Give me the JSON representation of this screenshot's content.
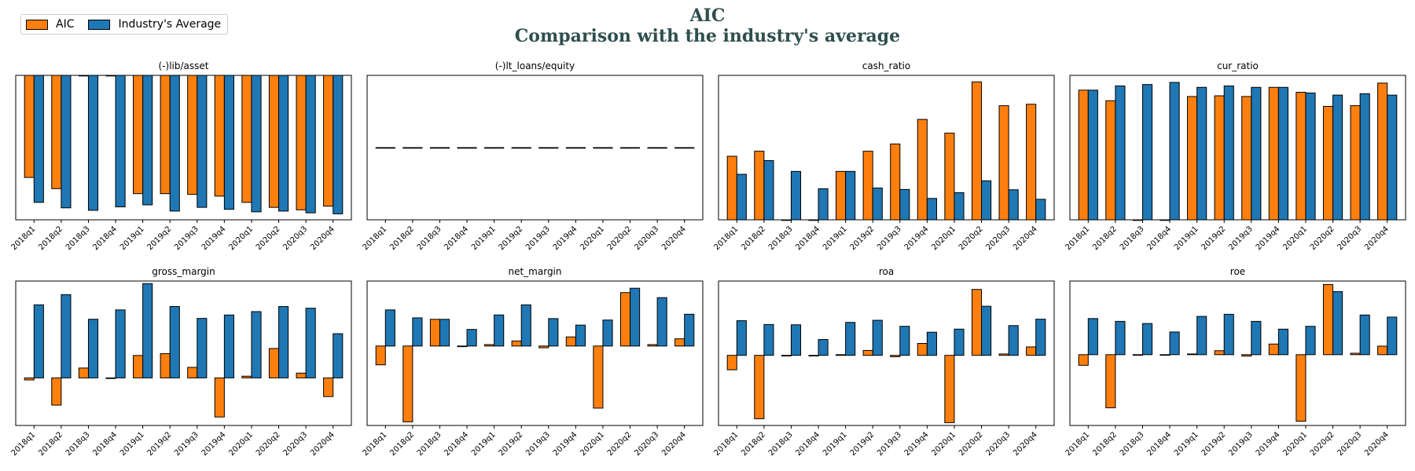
{
  "title": {
    "line1": "AIC",
    "line2": "Comparison with the industry's average"
  },
  "legend": [
    {
      "label": "AIC",
      "color": "#ff7f0e"
    },
    {
      "label": "Industry's Average",
      "color": "#1f77b4"
    }
  ],
  "chart_data": [
    {
      "type": "bar",
      "title": "(-)lib/asset",
      "ylim": [
        -0.58,
        0.0
      ],
      "categories": [
        "2018q1",
        "2018q2",
        "2018q3",
        "2018q4",
        "2019q1",
        "2019q2",
        "2019q3",
        "2019q4",
        "2020q1",
        "2020q2",
        "2020q3",
        "2020q4"
      ],
      "series": [
        {
          "name": "AIC",
          "values": [
            -0.41,
            -0.455,
            0.0,
            0.0,
            -0.475,
            -0.475,
            -0.478,
            -0.485,
            -0.51,
            -0.53,
            -0.54,
            -0.525
          ]
        },
        {
          "name": "Industry's Average",
          "values": [
            -0.51,
            -0.532,
            -0.542,
            -0.528,
            -0.52,
            -0.545,
            -0.53,
            -0.538,
            -0.548,
            -0.545,
            -0.552,
            -0.556
          ]
        }
      ]
    },
    {
      "type": "bar",
      "title": "(-)lt_loans/equity",
      "ylim": [
        -1,
        1
      ],
      "categories": [
        "2018q1",
        "2018q2",
        "2018q3",
        "2018q4",
        "2019q1",
        "2019q2",
        "2019q3",
        "2019q4",
        "2020q1",
        "2020q2",
        "2020q3",
        "2020q4"
      ],
      "series": [
        {
          "name": "AIC",
          "values": [
            0,
            0,
            0,
            0,
            0,
            0,
            0,
            0,
            0,
            0,
            0,
            0
          ]
        },
        {
          "name": "Industry's Average",
          "values": [
            0,
            0,
            0,
            0,
            0,
            0,
            0,
            0,
            0,
            0,
            0,
            0
          ]
        }
      ]
    },
    {
      "type": "bar",
      "title": "cash_ratio",
      "ylim": [
        0,
        1.0
      ],
      "categories": [
        "2018q1",
        "2018q2",
        "2018q3",
        "2018q4",
        "2019q1",
        "2019q2",
        "2019q3",
        "2019q4",
        "2020q1",
        "2020q2",
        "2020q3",
        "2020q4"
      ],
      "series": [
        {
          "name": "AIC",
          "values": [
            0.44,
            0.475,
            0.0,
            0.0,
            0.335,
            0.475,
            0.525,
            0.695,
            0.6,
            0.955,
            0.79,
            0.8
          ]
        },
        {
          "name": "Industry's Average",
          "values": [
            0.315,
            0.41,
            0.335,
            0.215,
            0.335,
            0.22,
            0.21,
            0.148,
            0.188,
            0.27,
            0.208,
            0.142
          ]
        }
      ]
    },
    {
      "type": "bar",
      "title": "cur_ratio",
      "ylim": [
        0,
        2.05
      ],
      "categories": [
        "2018q1",
        "2018q2",
        "2018q3",
        "2018q4",
        "2019q1",
        "2019q2",
        "2019q3",
        "2019q4",
        "2020q1",
        "2020q2",
        "2020q3",
        "2020q4"
      ],
      "series": [
        {
          "name": "AIC",
          "values": [
            1.84,
            1.69,
            0.0,
            0.0,
            1.75,
            1.76,
            1.75,
            1.88,
            1.81,
            1.61,
            1.62,
            1.94
          ]
        },
        {
          "name": "Industry's Average",
          "values": [
            1.84,
            1.9,
            1.92,
            1.95,
            1.88,
            1.9,
            1.88,
            1.88,
            1.8,
            1.77,
            1.79,
            1.77
          ]
        }
      ]
    },
    {
      "type": "bar",
      "title": "gross_margin",
      "ylim": [
        -0.28,
        0.57
      ],
      "categories": [
        "2018q1",
        "2018q2",
        "2018q3",
        "2018q4",
        "2019q1",
        "2019q2",
        "2019q3",
        "2019q4",
        "2020q1",
        "2020q2",
        "2020q3",
        "2020q4"
      ],
      "series": [
        {
          "name": "AIC",
          "values": [
            -0.012,
            -0.16,
            0.058,
            0.0,
            0.132,
            0.143,
            0.062,
            -0.23,
            0.01,
            0.173,
            0.028,
            -0.11
          ]
        },
        {
          "name": "Industry's Average",
          "values": [
            0.43,
            0.49,
            0.345,
            0.4,
            0.555,
            0.42,
            0.35,
            0.37,
            0.39,
            0.42,
            0.41,
            0.26
          ]
        }
      ]
    },
    {
      "type": "bar",
      "title": "net_margin",
      "ylim": [
        -0.55,
        0.45
      ],
      "categories": [
        "2018q1",
        "2018q2",
        "2018q3",
        "2018q4",
        "2019q1",
        "2019q2",
        "2019q3",
        "2019q4",
        "2020q1",
        "2020q2",
        "2020q3",
        "2020q4"
      ],
      "series": [
        {
          "name": "AIC",
          "values": [
            -0.13,
            -0.525,
            0.185,
            0.0,
            0.01,
            0.035,
            -0.012,
            0.063,
            -0.43,
            0.37,
            0.01,
            0.05
          ]
        },
        {
          "name": "Industry's Average",
          "values": [
            0.25,
            0.195,
            0.185,
            0.115,
            0.215,
            0.285,
            0.19,
            0.145,
            0.18,
            0.4,
            0.335,
            0.22
          ]
        }
      ]
    },
    {
      "type": "bar",
      "title": "roa",
      "ylim": [
        -0.5,
        0.53
      ],
      "categories": [
        "2018q1",
        "2018q2",
        "2018q3",
        "2018q4",
        "2019q1",
        "2019q2",
        "2019q3",
        "2019q4",
        "2020q1",
        "2020q2",
        "2020q3",
        "2020q4"
      ],
      "series": [
        {
          "name": "AIC",
          "values": [
            -0.103,
            -0.452,
            0.0,
            0.0,
            0.005,
            0.035,
            -0.01,
            0.085,
            -0.48,
            0.47,
            0.01,
            0.06
          ]
        },
        {
          "name": "Industry's Average",
          "values": [
            0.247,
            0.22,
            0.218,
            0.113,
            0.235,
            0.25,
            0.207,
            0.165,
            0.187,
            0.35,
            0.212,
            0.258
          ]
        }
      ]
    },
    {
      "type": "bar",
      "title": "roe",
      "ylim": [
        -0.5,
        0.52
      ],
      "categories": [
        "2018q1",
        "2018q2",
        "2018q3",
        "2018q4",
        "2019q1",
        "2019q2",
        "2019q3",
        "2019q4",
        "2020q1",
        "2020q2",
        "2020q3",
        "2020q4"
      ],
      "series": [
        {
          "name": "AIC",
          "values": [
            -0.075,
            -0.375,
            0.0,
            0.0,
            0.005,
            0.028,
            -0.01,
            0.075,
            -0.47,
            0.495,
            0.01,
            0.06
          ]
        },
        {
          "name": "Industry's Average",
          "values": [
            0.255,
            0.235,
            0.22,
            0.16,
            0.27,
            0.285,
            0.235,
            0.18,
            0.2,
            0.445,
            0.28,
            0.265
          ]
        }
      ]
    }
  ]
}
